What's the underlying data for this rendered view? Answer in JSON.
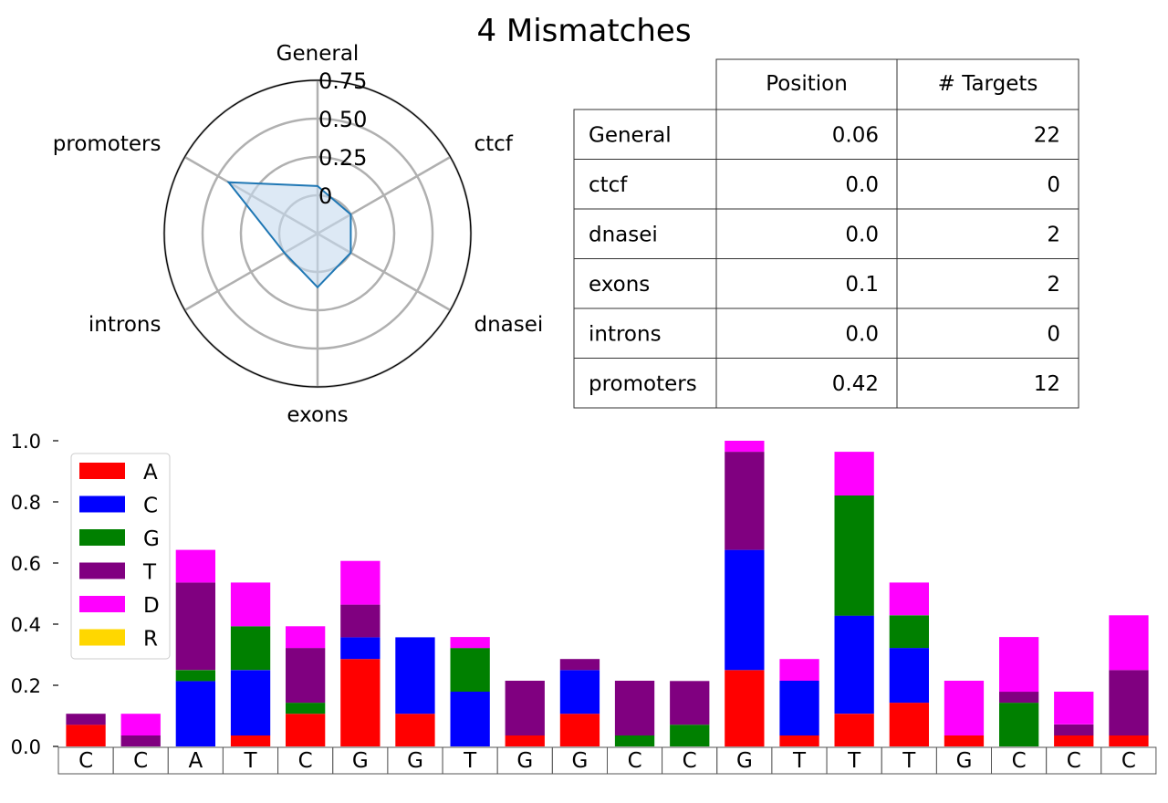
{
  "title": "4 Mismatches",
  "colors": {
    "A": "#ff0000",
    "C": "#0000ff",
    "G": "#008000",
    "T": "#800080",
    "D": "#ff00ff",
    "R": "#ffd700",
    "radar_line": "#1f77b4",
    "radar_fill": "#c6dbef",
    "grid": "#b0b0b0"
  },
  "chart_data": [
    {
      "type": "radar",
      "axes": [
        "General",
        "ctcf",
        "dnasei",
        "exons",
        "introns",
        "promoters"
      ],
      "values": [
        0.06,
        0.0,
        0.0,
        0.1,
        0.0,
        0.42
      ],
      "radial_ticks": [
        0,
        0.25,
        0.5,
        0.75
      ],
      "radial_tick_labels": [
        "0",
        "0.25",
        "0.50",
        "0.75"
      ],
      "rlim": [
        -0.25,
        0.75
      ]
    },
    {
      "type": "table",
      "columns": [
        "",
        "Position",
        "# Targets"
      ],
      "rows": [
        [
          "General",
          "0.06",
          "22"
        ],
        [
          "ctcf",
          "0.0",
          "0"
        ],
        [
          "dnasei",
          "0.0",
          "2"
        ],
        [
          "exons",
          "0.1",
          "2"
        ],
        [
          "introns",
          "0.0",
          "0"
        ],
        [
          "promoters",
          "0.42",
          "12"
        ]
      ]
    },
    {
      "type": "bar",
      "stacked": true,
      "categories": [
        "C",
        "C",
        "A",
        "T",
        "C",
        "G",
        "G",
        "T",
        "G",
        "G",
        "C",
        "C",
        "G",
        "T",
        "T",
        "T",
        "G",
        "C",
        "C",
        "C"
      ],
      "ylim": [
        0,
        1.0
      ],
      "yticks": [
        "0.0",
        "0.2",
        "0.4",
        "0.6",
        "0.8",
        "1.0"
      ],
      "legend_position": "top-left",
      "series": [
        {
          "name": "A",
          "values": [
            0.071,
            0,
            0,
            0.036,
            0.107,
            0.286,
            0.107,
            0,
            0.036,
            0.107,
            0,
            0,
            0.25,
            0.036,
            0.107,
            0.143,
            0.036,
            0,
            0.036,
            0.036
          ]
        },
        {
          "name": "C",
          "values": [
            0,
            0,
            0.214,
            0.214,
            0,
            0.071,
            0.25,
            0.179,
            0,
            0.143,
            0,
            0,
            0.393,
            0.179,
            0.321,
            0.179,
            0,
            0,
            0,
            0
          ]
        },
        {
          "name": "G",
          "values": [
            0,
            0,
            0.036,
            0.143,
            0.036,
            0,
            0,
            0.143,
            0,
            0,
            0.036,
            0.071,
            0,
            0,
            0.393,
            0.107,
            0,
            0.143,
            0,
            0
          ]
        },
        {
          "name": "T",
          "values": [
            0.036,
            0.036,
            0.286,
            0,
            0.179,
            0.107,
            0,
            0,
            0.179,
            0.036,
            0.179,
            0.143,
            0.321,
            0,
            0,
            0,
            0,
            0.036,
            0.036,
            0.214
          ]
        },
        {
          "name": "D",
          "values": [
            0,
            0.071,
            0.107,
            0.143,
            0.071,
            0.143,
            0,
            0.036,
            0,
            0,
            0,
            0,
            0.036,
            0.071,
            0.143,
            0.107,
            0.179,
            0.179,
            0.107,
            0.179
          ]
        },
        {
          "name": "R",
          "values": [
            0,
            0,
            0,
            0,
            0,
            0,
            0,
            0,
            0,
            0,
            0,
            0,
            0,
            0,
            0,
            0,
            0,
            0,
            0,
            0
          ]
        }
      ]
    }
  ]
}
